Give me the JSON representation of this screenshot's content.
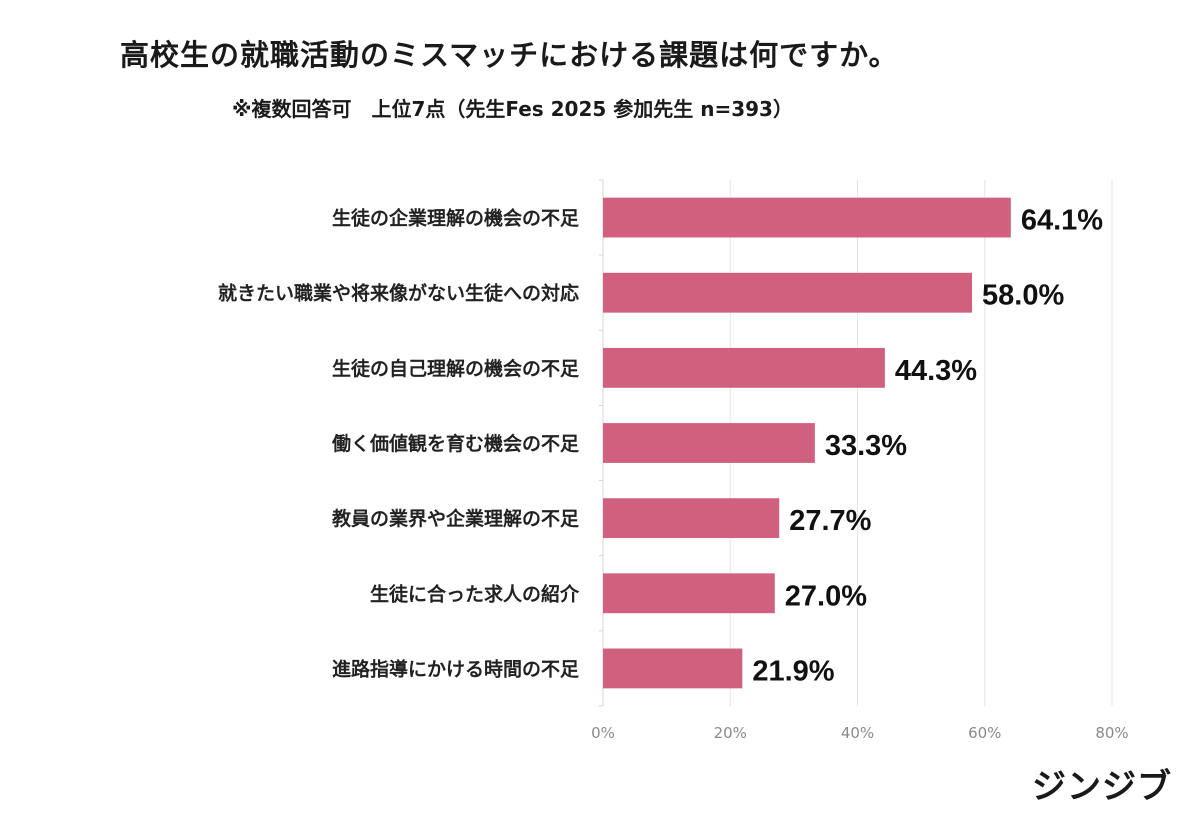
{
  "title": "高校生の就職活動のミスマッチにおける課題は何ですか。",
  "subtitle": "※複数回答可　上位7点（先生Fes 2025 参加先生 n=393）",
  "brand": "ジンジブ",
  "colors": {
    "bar": "#d0607e",
    "grid": "#e6e6e6",
    "axis": "#d4d4d4"
  },
  "chart_data": {
    "type": "bar",
    "orientation": "horizontal",
    "categories": [
      "生徒の企業理解の機会の不足",
      "就きたい職業や将来像がない生徒への対応",
      "生徒の自己理解の機会の不足",
      "働く価値観を育む機会の不足",
      "教員の業界や企業理解の不足",
      "生徒に合った求人の紹介",
      "進路指導にかける時間の不足"
    ],
    "values": [
      64.1,
      58.0,
      44.3,
      33.3,
      27.7,
      27.0,
      21.9
    ],
    "value_labels": [
      "64.1%",
      "58.0%",
      "44.3%",
      "33.3%",
      "27.7%",
      "27.0%",
      "21.9%"
    ],
    "xlim": [
      0,
      80
    ],
    "xticks": [
      0,
      20,
      40,
      60,
      80
    ],
    "xtick_labels": [
      "0%",
      "20%",
      "40%",
      "60%",
      "80%"
    ],
    "grid": true,
    "legend": "none"
  }
}
